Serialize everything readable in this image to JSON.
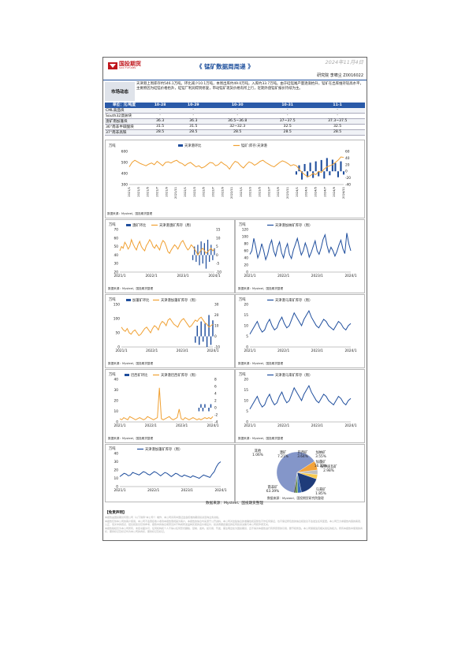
{
  "header": {
    "logo_cn": "国投期货",
    "logo_en": "SDIC FUTURES",
    "report_title": "《 锰矿数据周周递 》",
    "date": "2024年11月4日",
    "author_line": "研究院  李啸尘  Z0016022"
  },
  "summary": {
    "label": "市场动态",
    "text": "天津港上周库存约546.1万吨，环比减少10.1万吨，本周出库约49.0万吨，入库约33.7万吨。由于硅锰尾产量逐渐抬升，锰矿在出库维持较高水平，主要原因为硅锰价格抬升，硅锰厂利润得到修复，带动锰矿现货价格有所上行，近期外盘锰矿报价持续为主。"
  },
  "price_table": {
    "unit_header": "单位：元/吨度",
    "dates": [
      "10-28",
      "10-29",
      "10-30",
      "10-31",
      "11-1"
    ],
    "rows": [
      {
        "name": "CML高品块",
        "values": [
          "-",
          "-",
          "-",
          "-",
          "-"
        ]
      },
      {
        "name": "South32澳洲块",
        "values": [
          "-",
          "-",
          "-",
          "-",
          "-"
        ]
      },
      {
        "name": "澳矿南加蓬块",
        "values": [
          "36.3",
          "36.3",
          "36.5~36.8",
          "37~37.5",
          "37.3~37.5"
        ]
      },
      {
        "name": "36°南非半碳酸块",
        "values": [
          "31.5",
          "31.5",
          "32~32.3",
          "32.5",
          "32.5"
        ]
      },
      {
        "name": "37°南非高铁",
        "values": [
          "28.5",
          "28.5",
          "28.5",
          "28.5",
          "28.5"
        ]
      }
    ]
  },
  "charts": {
    "c1": {
      "unit": "万吨",
      "legend_bar": "天津港环比",
      "legend_line": "锰矿:库存:天津港",
      "x_labels": [
        "2021/1",
        "2021/3",
        "2021/5",
        "2021/7",
        "2021/9",
        "2021/11",
        "2022/1",
        "2022/3",
        "2022/5",
        "2022/7",
        "2022/9",
        "2022/11",
        "2023/1",
        "2023/3",
        "2023/5",
        "2023/7",
        "2023/9",
        "2023/11",
        "2024/1",
        "2024/3",
        "2024/5",
        "2024/7",
        "2024/9",
        "2024/11"
      ],
      "y_left": [
        "600",
        "500",
        "400",
        "300"
      ],
      "y_right": [
        "60",
        "40",
        "20",
        "0",
        "-20",
        "-40"
      ],
      "line": [
        460,
        500,
        520,
        505,
        490,
        480,
        470,
        485,
        495,
        480,
        510,
        490,
        470,
        500,
        505,
        495,
        510,
        520,
        500,
        490,
        470,
        490,
        500,
        480,
        460,
        470,
        450,
        460,
        480,
        500,
        495,
        470,
        480,
        505,
        485,
        470,
        440,
        480,
        510,
        500,
        470,
        450,
        480,
        505,
        495,
        475,
        490,
        510,
        520,
        500,
        485,
        470,
        460,
        480,
        500,
        515,
        505,
        490,
        470,
        480,
        470,
        440,
        410,
        390,
        370,
        380,
        400,
        390,
        420,
        410,
        440,
        460,
        470,
        480,
        500,
        520,
        550,
        546
      ],
      "bars": [
        0,
        0,
        0,
        0,
        0,
        0,
        0,
        0,
        0,
        0,
        0,
        0,
        0,
        0,
        0,
        0,
        0,
        0,
        0,
        0,
        0,
        0,
        0,
        0,
        0,
        0,
        0,
        0,
        0,
        0,
        0,
        0,
        0,
        0,
        0,
        0,
        0,
        0,
        0,
        0,
        0,
        0,
        0,
        0,
        0,
        0,
        0,
        0,
        0,
        0,
        0,
        0,
        0,
        0,
        0,
        0,
        0,
        0,
        0,
        0,
        -10,
        18,
        -25,
        22,
        -18,
        26,
        -20,
        30,
        -15,
        34,
        -22,
        40,
        -12,
        35,
        25,
        -18,
        30,
        -10
      ],
      "source": "数据来源：Mysteel、国投期货整理"
    },
    "c2": {
      "unit": "万吨",
      "legend_bar": "澳矿环比",
      "legend_line": "天津港澳矿库存（周）",
      "x_labels": [
        "2021/1",
        "2022/1",
        "2023/1",
        "2024/1"
      ],
      "y_left": [
        "70",
        "60",
        "50",
        "40",
        "30",
        "20"
      ],
      "y_right": [
        "15",
        "10",
        "5",
        "0",
        "-5",
        "-10"
      ],
      "line": [
        45,
        50,
        48,
        55,
        52,
        47,
        50,
        58,
        53,
        49,
        46,
        52,
        56,
        50,
        47,
        45,
        51,
        54,
        58,
        55,
        50,
        48,
        52,
        49,
        46,
        53,
        57,
        55,
        50,
        44,
        42,
        46,
        49,
        52,
        50,
        47,
        51,
        55,
        57,
        53,
        49,
        46,
        48,
        52,
        50,
        47,
        44,
        40,
        43,
        46,
        48,
        45,
        42,
        44,
        46,
        48,
        45,
        47
      ],
      "bars": [
        0,
        0,
        0,
        0,
        0,
        0,
        0,
        0,
        0,
        0,
        0,
        0,
        0,
        0,
        0,
        0,
        0,
        0,
        0,
        0,
        0,
        0,
        0,
        0,
        0,
        0,
        0,
        0,
        0,
        0,
        0,
        0,
        0,
        0,
        0,
        0,
        0,
        0,
        0,
        0,
        0,
        0,
        0,
        0,
        -3,
        5,
        -4,
        6,
        -6,
        8,
        -5,
        7,
        -8,
        9,
        -4,
        6,
        -3,
        4
      ],
      "source": "数据来源：Mysteel、国投期货整理"
    },
    "c3": {
      "unit": "万吨",
      "legend_line": "天津港加纳矿库存（周）",
      "x_labels": [
        "2021/1",
        "2022/1",
        "2023/1",
        "2024/1"
      ],
      "y_left": [
        "120",
        "100",
        "80",
        "60",
        "40",
        "20",
        "0"
      ],
      "line": [
        50,
        60,
        95,
        70,
        40,
        55,
        80,
        60,
        35,
        50,
        75,
        90,
        60,
        45,
        70,
        85,
        55,
        40,
        65,
        80,
        50,
        38,
        62,
        78,
        95,
        70,
        48,
        60,
        82,
        66,
        42,
        55,
        72,
        88,
        60,
        50,
        68,
        92,
        105,
        75,
        55,
        70,
        60,
        45,
        58,
        76,
        90,
        66,
        52,
        110,
        80,
        60
      ],
      "source": "数据来源：Mysteel、国投期货整理"
    },
    "c4": {
      "unit": "万吨",
      "legend_bar": "加蓬矿环比",
      "legend_line": "天津港加蓬矿库存（周）",
      "x_labels": [
        "2021/1",
        "2022/1",
        "2023/1",
        "2024/1"
      ],
      "y_left": [
        "150",
        "100",
        "50",
        "0"
      ],
      "y_right": [
        "30",
        "20",
        "10",
        "0",
        "-10"
      ],
      "line": [
        70,
        60,
        55,
        65,
        50,
        45,
        55,
        60,
        50,
        40,
        45,
        55,
        65,
        70,
        60,
        50,
        65,
        75,
        70,
        60,
        80,
        90,
        85,
        75,
        95,
        100,
        90,
        80,
        75,
        70,
        85,
        95,
        100,
        90,
        80,
        70,
        75,
        85,
        95,
        90,
        100,
        105,
        95,
        85,
        80,
        70,
        75,
        80
      ],
      "bars": [
        0,
        0,
        0,
        0,
        0,
        0,
        0,
        0,
        0,
        0,
        0,
        0,
        0,
        0,
        0,
        0,
        0,
        0,
        0,
        0,
        0,
        0,
        0,
        0,
        0,
        0,
        0,
        0,
        0,
        0,
        0,
        0,
        0,
        0,
        0,
        0,
        0,
        0,
        -6,
        10,
        -8,
        14,
        -5,
        12,
        -10,
        20,
        -8,
        15
      ],
      "source": "数据来源：Mysteel、国投期货整理"
    },
    "c5": {
      "unit": "万吨",
      "legend_line": "天津港马来矿库存（周）",
      "x_labels": [
        "2021/1",
        "2022/1",
        "2023/1",
        "2024/1"
      ],
      "y_left": [
        "20",
        "15",
        "10",
        "5",
        "0"
      ],
      "line": [
        6,
        8,
        10,
        12,
        9,
        7,
        8,
        11,
        13,
        10,
        8,
        9,
        12,
        14,
        11,
        9,
        10,
        13,
        16,
        14,
        12,
        10,
        13,
        15,
        17,
        14,
        12,
        10,
        9,
        11,
        13,
        12,
        10,
        9,
        8,
        10,
        12,
        11,
        9,
        8,
        10,
        11
      ],
      "source": "数据来源：Mysteel、国投期货整理"
    },
    "c6": {
      "unit": "万吨",
      "legend_bar": "巴西矿环比",
      "legend_line": "天津港巴西矿库存（周）",
      "x_labels": [
        "2021/1",
        "2022/1",
        "2023/1",
        "2024/1"
      ],
      "y_left": [
        "40",
        "30",
        "20",
        "10",
        "0"
      ],
      "y_right": [
        "8",
        "6",
        "4",
        "2",
        "0",
        "-2",
        "-4"
      ],
      "line": [
        3,
        2,
        4,
        3,
        2,
        5,
        4,
        3,
        2,
        3,
        4,
        3,
        2,
        3,
        5,
        4,
        3,
        2,
        3,
        4,
        32,
        3,
        2,
        3,
        4,
        5,
        3,
        2,
        3,
        4,
        12,
        3,
        2,
        4,
        3,
        2,
        3,
        4,
        3,
        2,
        3,
        2,
        3,
        4,
        3,
        4,
        3,
        5
      ],
      "bars": [
        0,
        0,
        0,
        0,
        0,
        0,
        0,
        0,
        0,
        0,
        0,
        0,
        0,
        0,
        0,
        0,
        0,
        0,
        0,
        0,
        0,
        0,
        0,
        0,
        0,
        0,
        0,
        0,
        0,
        0,
        0,
        0,
        0,
        0,
        0,
        0,
        0,
        0,
        0,
        0,
        -1,
        1,
        -1,
        1,
        0,
        -1,
        1,
        0
      ],
      "source": "数据来源：Mysteel、国投期货整理"
    },
    "c7": {
      "unit": "万吨",
      "legend_line": "天津港加蓬矿库存（周）",
      "x_labels": [
        "2021/1",
        "2022/1",
        "2023/1",
        "2024/1"
      ],
      "y_left": [
        "40",
        "30",
        "20",
        "10",
        "0"
      ],
      "line": [
        12,
        14,
        16,
        15,
        13,
        14,
        17,
        16,
        15,
        14,
        16,
        18,
        17,
        15,
        14,
        16,
        18,
        17,
        15,
        13,
        15,
        17,
        16,
        14,
        12,
        14,
        16,
        15,
        13,
        12,
        14,
        13,
        12,
        11,
        13,
        12,
        11,
        10,
        12,
        14,
        13,
        12,
        11,
        15,
        18,
        24,
        28,
        30
      ],
      "source": ""
    },
    "pie": {
      "slices": [
        {
          "label": "南非矿",
          "pct": 63.39,
          "text": "63.39%",
          "color": "#8496c9"
        },
        {
          "label": "澳矿",
          "pct": 7.21,
          "text": "7.21%",
          "color": "#f3a33a"
        },
        {
          "label": "巴西矿",
          "pct": 3.64,
          "text": "3.64%",
          "color": "#c0c0c0"
        },
        {
          "label": "加纳矿",
          "pct": 3.55,
          "text": "3.55%",
          "color": "#f6c94f"
        },
        {
          "label": "加蓬矿",
          "pct": 16.32,
          "text": "16.32%",
          "color": "#1f3c7a"
        },
        {
          "label": "科特迪瓦矿",
          "pct": 2.98,
          "text": "2.98%",
          "color": "#3b6ebb"
        },
        {
          "label": "马来矿",
          "pct": 1.85,
          "text": "1.85%",
          "color": "#6a9a48"
        },
        {
          "label": "其他",
          "pct": 1.06,
          "text": "1.06%",
          "color": "#2a2a2a"
        }
      ],
      "source": "数据来源：Mysteel、国投期货研究院整理"
    }
  },
  "bottom_source": "数据来源：Mysteel、国投期货整理",
  "disclaimer": {
    "title": "【免责声明】",
    "paragraphs": [
      "本报告由国投期货有限公司（以下简称“本公司”）制作，本公司具有中国证监会核准的期货投资咨询业务资格。",
      "本报告仅供本公司的客户使用，本公司不会因接收人收到本报告而视其为客户。本报告的信息均来源于公开资料，本公司对这些信息的准确性和完整性不作任何保证，也不保证所包含的信息和建议不会发生任何变更。本公司已力求报告内容的客观、公正，但文中的观点、结论和建议仅供参考，报告中的信息或意见并不构成所述品种买卖的出价或征价，投资者据此做出的任何投资决策与本公司和作者无关。",
      "本报告版权仅为本公司所有，未经书面许可，任何机构和个人不得以任何形式翻版、复制、发布。如引用、刊发，需注明出处为国投期货，且不得对本报告进行有悖原意的引用、删节和修改。本公司保留追究相关责任的权力。所有本报告中使用的商标、服务标记及标记均为本公司的商标、服务标记及标记。"
    ]
  }
}
